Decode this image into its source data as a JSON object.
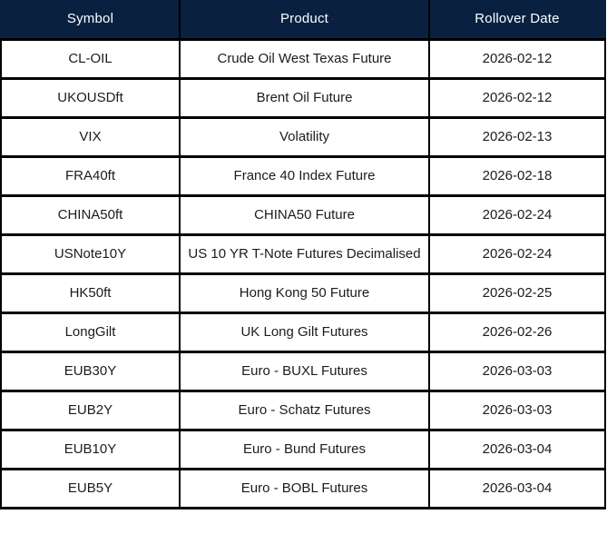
{
  "colors": {
    "header_bg": "#0a2040",
    "header_text": "#ffffff",
    "border": "#000000",
    "cell_text": "#1c1c1c",
    "row_bg": "#ffffff"
  },
  "table": {
    "headers": {
      "symbol": "Symbol",
      "product": "Product",
      "rollover_date": "Rollover Date"
    },
    "rows": [
      {
        "symbol": "CL-OIL",
        "product": "Crude Oil West Texas Future",
        "rollover_date": "2026-02-12"
      },
      {
        "symbol": "UKOUSDft",
        "product": "Brent Oil Future",
        "rollover_date": "2026-02-12"
      },
      {
        "symbol": "VIX",
        "product": "Volatility",
        "rollover_date": "2026-02-13"
      },
      {
        "symbol": "FRA40ft",
        "product": "France 40 Index Future",
        "rollover_date": "2026-02-18"
      },
      {
        "symbol": "CHINA50ft",
        "product": "CHINA50 Future",
        "rollover_date": "2026-02-24"
      },
      {
        "symbol": "USNote10Y",
        "product": "US 10 YR T-Note Futures Decimalised",
        "rollover_date": "2026-02-24"
      },
      {
        "symbol": "HK50ft",
        "product": "Hong Kong 50 Future",
        "rollover_date": "2026-02-25"
      },
      {
        "symbol": "LongGilt",
        "product": "UK Long Gilt Futures",
        "rollover_date": "2026-02-26"
      },
      {
        "symbol": "EUB30Y",
        "product": "Euro - BUXL Futures",
        "rollover_date": "2026-03-03"
      },
      {
        "symbol": "EUB2Y",
        "product": "Euro - Schatz Futures",
        "rollover_date": "2026-03-03"
      },
      {
        "symbol": "EUB10Y",
        "product": "Euro - Bund Futures",
        "rollover_date": "2026-03-04"
      },
      {
        "symbol": "EUB5Y",
        "product": "Euro - BOBL Futures",
        "rollover_date": "2026-03-04"
      }
    ]
  }
}
